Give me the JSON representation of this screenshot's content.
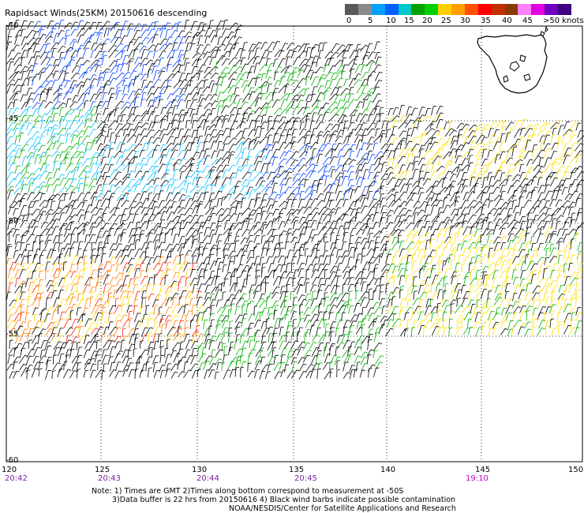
{
  "title": "Rapidsact Winds(25KM) 20150616 descending",
  "legend": {
    "colors": [
      "#5a5a5a",
      "#8a8a8a",
      "#00a0ff",
      "#0060ff",
      "#00c8c8",
      "#00a000",
      "#00d000",
      "#ffd000",
      "#ffa000",
      "#ff5000",
      "#ff0000",
      "#c03000",
      "#8a3a00",
      "#ff80ff",
      "#e000e0",
      "#7000c0",
      "#400080"
    ],
    "labels": [
      "0",
      "5",
      "10",
      "15",
      "20",
      "25",
      "30",
      "35",
      "40",
      "45",
      ">50 knots"
    ]
  },
  "axes": {
    "lon_labels": [
      "120",
      "125",
      "130",
      "135",
      "140",
      "145",
      "150"
    ],
    "lat_labels": [
      "-40",
      "-45",
      "-50",
      "-55",
      "-60"
    ],
    "time_labels": [
      "20:42",
      "20:43",
      "20:44",
      "20:45",
      "19:10"
    ]
  },
  "notes": {
    "line1": "Note: 1) Times are GMT 2)Times along bottom correspond to measurement at -50S",
    "line2": "3)Data buffer is 22 hrs from 20150616 4) Black wind barbs indicate possible contamination",
    "line3": "NOAA/NESDIS/Center for Satellite Applications and Research"
  },
  "colors": {
    "contaminated": "#000000",
    "speed_10_15": "#0040ff",
    "speed_15_20": "#00c0ff",
    "speed_20_25": "#00b000",
    "speed_25_30": "#ffe000",
    "speed_30_35": "#ff8000",
    "speed_35_40": "#ff2000",
    "land_outline": "#000000",
    "grid": "#000000",
    "time_label": "#7a1fa2"
  }
}
